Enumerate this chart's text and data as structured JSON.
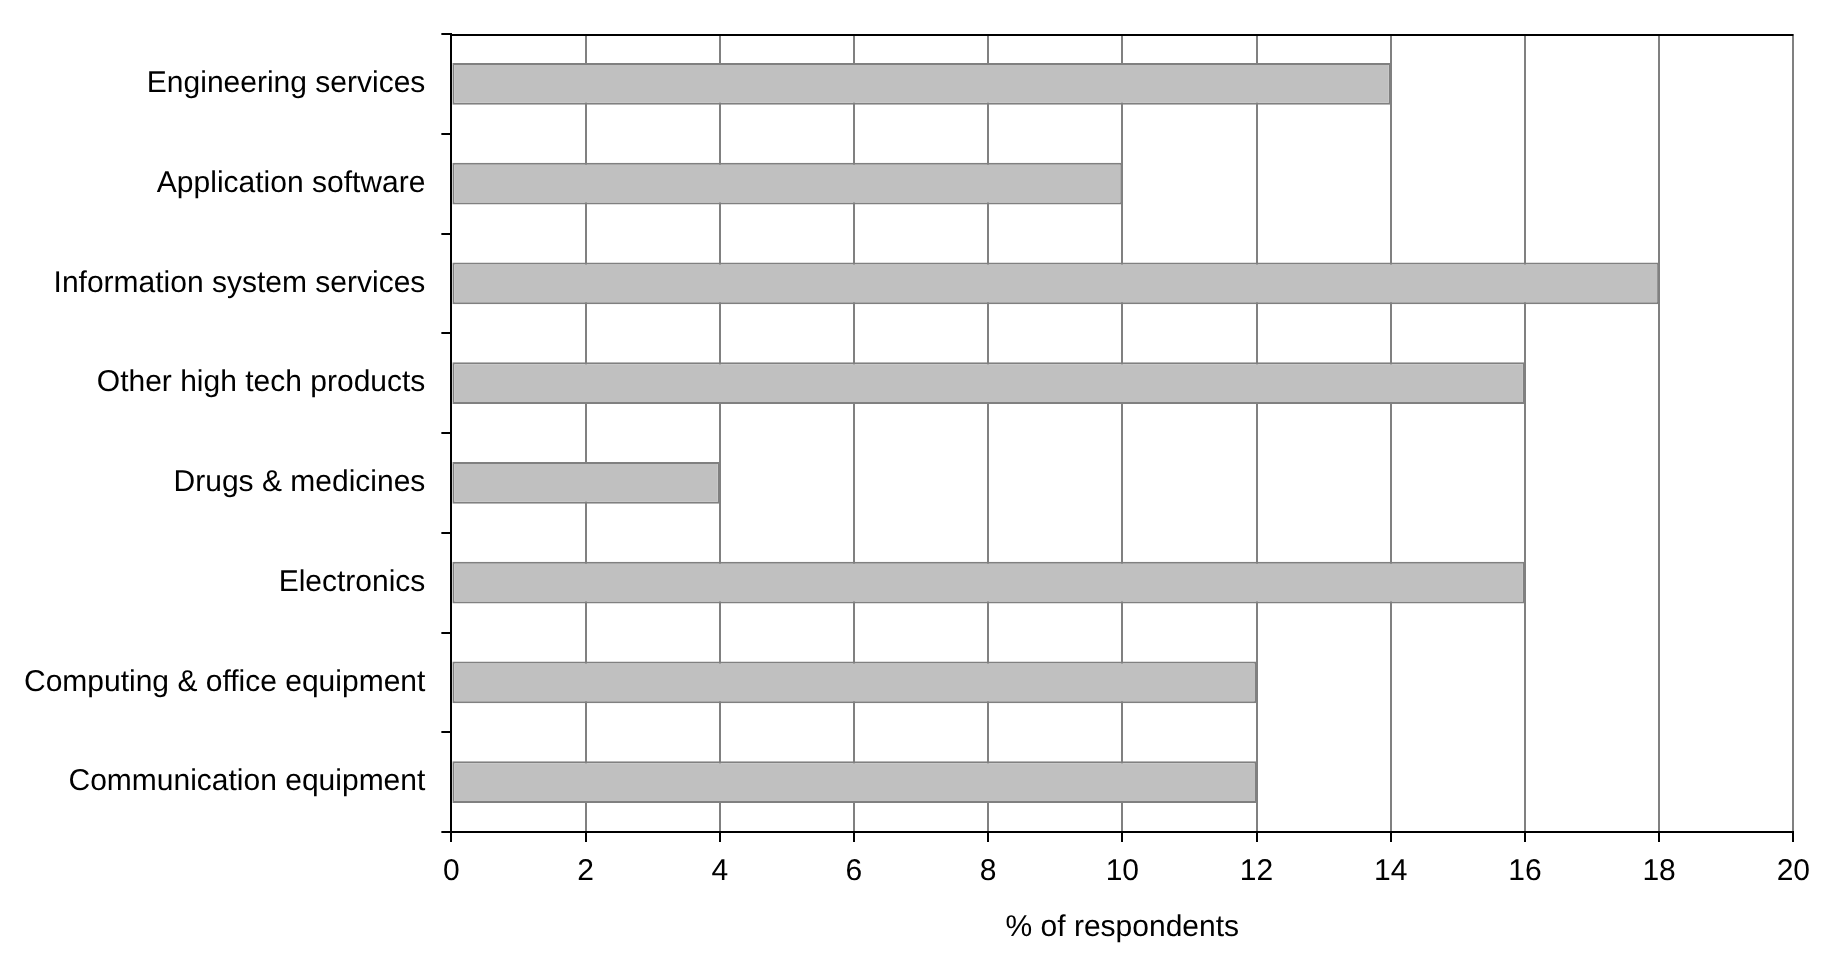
{
  "chart_data": {
    "type": "bar",
    "orientation": "horizontal",
    "xlabel": "% of respondents",
    "categories": [
      "Engineering services",
      "Application software",
      "Information system services",
      "Other high tech products",
      "Drugs & medicines",
      "Electronics",
      "Computing & office equipment",
      "Communication equipment"
    ],
    "values": [
      14,
      10,
      18,
      16,
      4,
      16,
      12,
      12
    ],
    "color": "#c0c0c0",
    "xlim": [
      0,
      20
    ],
    "xticks": [
      0,
      2,
      4,
      6,
      8,
      10,
      12,
      14,
      16,
      18,
      20
    ],
    "grid": "x"
  }
}
